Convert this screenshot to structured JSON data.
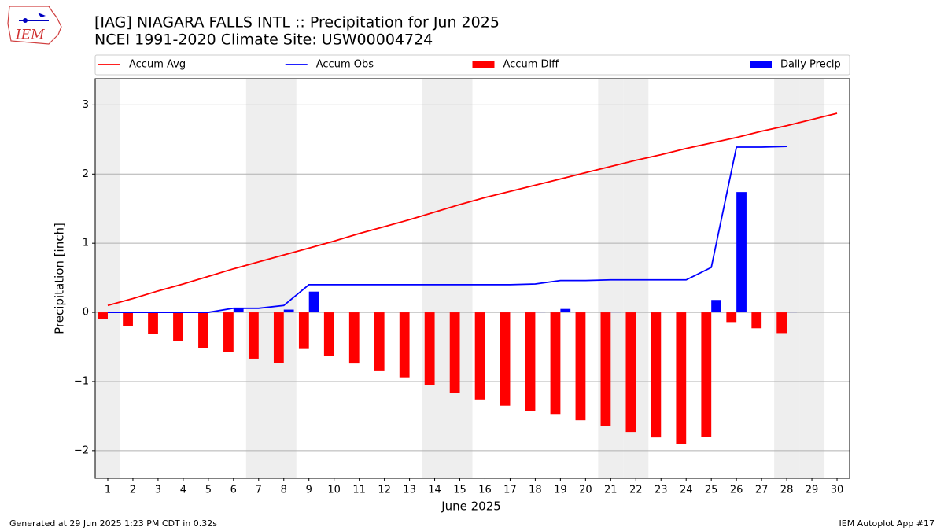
{
  "chart_data": {
    "type": "combo",
    "logo_text": "IEM",
    "title": "[IAG] NIAGARA FALLS INTL :: Precipitation for Jun 2025",
    "subtitle": "NCEI 1991-2020 Climate Site: USW00004724",
    "x_label": "June 2025",
    "y_label": "Precipitation [inch]",
    "footer_left": "Generated at 29 Jun 2025 1:23 PM CDT in 0.32s",
    "footer_right": "IEM Autoplot App #17",
    "x": [
      1,
      2,
      3,
      4,
      5,
      6,
      7,
      8,
      9,
      10,
      11,
      12,
      13,
      14,
      15,
      16,
      17,
      18,
      19,
      20,
      21,
      22,
      23,
      24,
      25,
      26,
      27,
      28,
      29,
      30
    ],
    "xlim": [
      0.5,
      30.5
    ],
    "xticks": [
      1,
      2,
      3,
      4,
      5,
      6,
      7,
      8,
      9,
      10,
      11,
      12,
      13,
      14,
      15,
      16,
      17,
      18,
      19,
      20,
      21,
      22,
      23,
      24,
      25,
      26,
      27,
      28,
      29,
      30
    ],
    "ylim": [
      -2.4,
      3.38
    ],
    "yticks": [
      {
        "value": -2,
        "label": "−2"
      },
      {
        "value": -1,
        "label": "−1"
      },
      0,
      1,
      2,
      3
    ],
    "grid": true,
    "shaded_days": [
      1,
      7,
      8,
      14,
      15,
      21,
      22,
      28,
      29
    ],
    "shade_color": "#eeeeee",
    "legend": "top",
    "series": [
      {
        "name": "Accum Avg",
        "type": "line",
        "color": "#ff0000",
        "values": [
          0.1,
          0.2,
          0.31,
          0.41,
          0.52,
          0.63,
          0.73,
          0.83,
          0.93,
          1.03,
          1.14,
          1.24,
          1.34,
          1.45,
          1.56,
          1.66,
          1.75,
          1.84,
          1.93,
          2.02,
          2.11,
          2.2,
          2.28,
          2.37,
          2.45,
          2.53,
          2.62,
          2.7,
          2.79,
          2.88
        ]
      },
      {
        "name": "Accum Obs",
        "type": "line",
        "color": "#0000ff",
        "values": [
          0,
          0,
          0,
          0,
          0,
          0.06,
          0.06,
          0.1,
          0.4,
          0.4,
          0.4,
          0.4,
          0.4,
          0.4,
          0.4,
          0.4,
          0.4,
          0.41,
          0.46,
          0.46,
          0.47,
          0.47,
          0.47,
          0.47,
          0.65,
          2.39,
          2.39,
          2.4,
          null,
          null
        ]
      },
      {
        "name": "Accum Diff",
        "type": "bar",
        "side": "left",
        "color": "#ff0000",
        "values": [
          -0.1,
          -0.2,
          -0.31,
          -0.41,
          -0.52,
          -0.57,
          -0.67,
          -0.73,
          -0.53,
          -0.63,
          -0.74,
          -0.84,
          -0.94,
          -1.05,
          -1.16,
          -1.26,
          -1.35,
          -1.43,
          -1.47,
          -1.56,
          -1.64,
          -1.73,
          -1.81,
          -1.9,
          -1.8,
          -0.14,
          -0.23,
          -0.3,
          null,
          null
        ]
      },
      {
        "name": "Daily Precip",
        "type": "bar",
        "side": "right",
        "color": "#0000ff",
        "values": [
          0,
          0,
          0,
          0,
          0,
          0.06,
          0,
          0.04,
          0.3,
          0,
          0,
          0,
          0,
          0,
          0,
          0,
          0,
          0.01,
          0.05,
          0,
          0.01,
          0,
          0,
          0,
          0.18,
          1.74,
          0,
          0.01,
          null,
          null
        ]
      }
    ]
  }
}
